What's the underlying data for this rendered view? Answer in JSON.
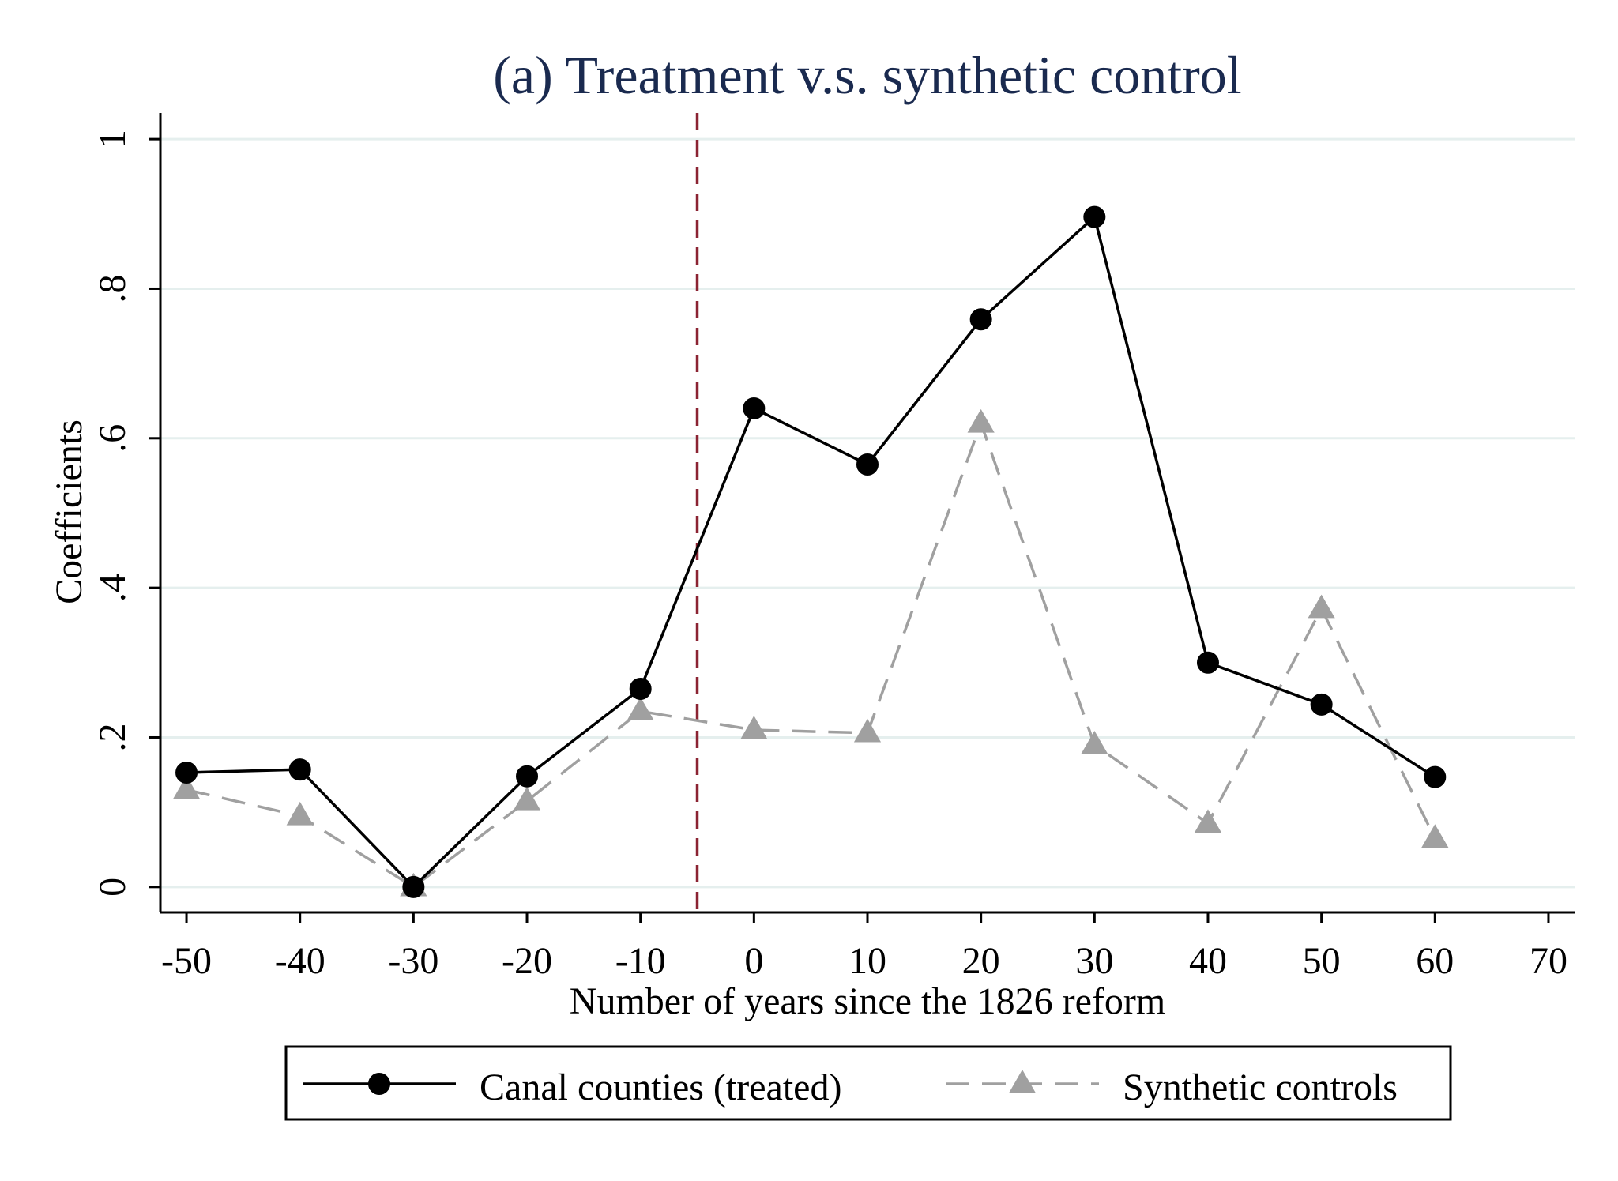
{
  "chart_data": {
    "type": "line",
    "title": "(a) Treatment v.s. synthetic control",
    "xlabel": "Number of years since the 1826 reform",
    "ylabel": "Coefficients",
    "xlim": [
      -52.3,
      72.3
    ],
    "ylim": [
      -0.034,
      1.035
    ],
    "x_ticks": [
      -50,
      -40,
      -30,
      -20,
      -10,
      0,
      10,
      20,
      30,
      40,
      50,
      60,
      70
    ],
    "x_tick_labels": [
      "-50",
      "-40",
      "-30",
      "-20",
      "-10",
      "0",
      "10",
      "20",
      "30",
      "40",
      "50",
      "60",
      "70"
    ],
    "y_ticks": [
      0,
      0.2,
      0.4,
      0.6,
      0.8,
      1
    ],
    "y_tick_labels": [
      "0",
      ".2",
      ".4",
      ".6",
      ".8",
      "1"
    ],
    "grid": "horizontal",
    "reference_line": {
      "x": -5,
      "style": "dashed",
      "color": "#8b2332"
    },
    "legend_position": "bottom",
    "series": [
      {
        "name": "Canal counties (treated)",
        "color": "#000000",
        "marker": "circle",
        "line_style": "solid",
        "x": [
          -50,
          -40,
          -30,
          -20,
          -10,
          0,
          10,
          20,
          30,
          40,
          50,
          60
        ],
        "y": [
          0.153,
          0.157,
          0.0,
          0.148,
          0.265,
          0.64,
          0.565,
          0.759,
          0.896,
          0.3,
          0.244,
          0.147
        ]
      },
      {
        "name": "Synthetic controls",
        "color": "#a0a0a0",
        "marker": "triangle",
        "line_style": "dashed",
        "x": [
          -50,
          -40,
          -30,
          -20,
          -10,
          0,
          10,
          20,
          30,
          40,
          50,
          60
        ],
        "y": [
          0.13,
          0.095,
          0.0,
          0.115,
          0.235,
          0.21,
          0.206,
          0.62,
          0.19,
          0.085,
          0.372,
          0.065
        ]
      }
    ]
  }
}
